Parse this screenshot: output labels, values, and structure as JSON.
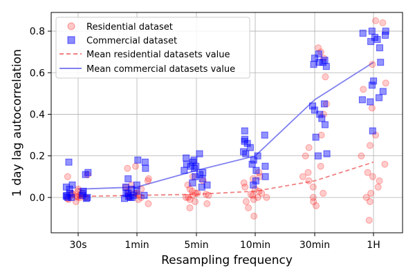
{
  "chart_data": {
    "type": "scatter",
    "xlabel": "Resampling frequency",
    "ylabel": "1 day lag autocorrelation",
    "categories": [
      "30s",
      "1min",
      "5min",
      "10min",
      "30min",
      "1H"
    ],
    "yticks": [
      0.0,
      0.2,
      0.4,
      0.6,
      0.8
    ],
    "ytick_labels": [
      "0.0",
      "0.2",
      "0.4",
      "0.6",
      "0.8"
    ],
    "ylim": [
      -0.17,
      0.89
    ],
    "grid": true,
    "legend_position": "top-left",
    "legend": [
      "Residential dataset",
      "Commercial dataset",
      "Mean residential datasets value",
      "Mean commercial datasets value"
    ],
    "colors": {
      "residential": "#ff0000",
      "commercial": "#0000ff",
      "residential_mean": "#f08080",
      "commercial_mean": "#8080f0"
    },
    "mean_residential": [
      0.005,
      0.01,
      0.015,
      0.03,
      0.08,
      0.17
    ],
    "mean_commercial": [
      0.04,
      0.05,
      0.13,
      0.2,
      0.47,
      0.65
    ],
    "series": [
      {
        "name": "Residential dataset",
        "marker": "circle",
        "points": [
          [
            0,
            0.0
          ],
          [
            0,
            0.01
          ],
          [
            0,
            -0.01
          ],
          [
            0,
            0.02
          ],
          [
            0,
            0.005
          ],
          [
            0,
            0.03
          ],
          [
            0,
            0.1
          ],
          [
            0,
            0.11
          ],
          [
            0,
            0.0
          ],
          [
            0,
            -0.02
          ],
          [
            0,
            0.015
          ],
          [
            0,
            0.0
          ],
          [
            0,
            0.02
          ],
          [
            0,
            -0.005
          ],
          [
            0,
            0.04
          ],
          [
            0,
            0.01
          ],
          [
            1,
            0.0
          ],
          [
            1,
            0.01
          ],
          [
            1,
            -0.01
          ],
          [
            1,
            0.02
          ],
          [
            1,
            0.03
          ],
          [
            1,
            0.05
          ],
          [
            1,
            0.08
          ],
          [
            1,
            0.09
          ],
          [
            1,
            0.14
          ],
          [
            1,
            0.15
          ],
          [
            1,
            -0.03
          ],
          [
            1,
            0.0
          ],
          [
            1,
            0.02
          ],
          [
            1,
            0.01
          ],
          [
            1,
            0.04
          ],
          [
            1,
            0.06
          ],
          [
            2,
            0.0
          ],
          [
            2,
            0.01
          ],
          [
            2,
            -0.02
          ],
          [
            2,
            -0.05
          ],
          [
            2,
            0.02
          ],
          [
            2,
            0.03
          ],
          [
            2,
            0.06
          ],
          [
            2,
            0.08
          ],
          [
            2,
            0.1
          ],
          [
            2,
            0.01
          ],
          [
            2,
            0.0
          ],
          [
            2,
            -0.03
          ],
          [
            2,
            0.04
          ],
          [
            2,
            0.015
          ],
          [
            2,
            0.02
          ],
          [
            2,
            -0.01
          ],
          [
            3,
            0.0
          ],
          [
            3,
            0.01
          ],
          [
            3,
            0.02
          ],
          [
            3,
            0.03
          ],
          [
            3,
            -0.02
          ],
          [
            3,
            -0.05
          ],
          [
            3,
            -0.09
          ],
          [
            3,
            0.05
          ],
          [
            3,
            0.07
          ],
          [
            3,
            0.09
          ],
          [
            3,
            0.1
          ],
          [
            3,
            0.12
          ],
          [
            3,
            0.0
          ],
          [
            3,
            0.015
          ],
          [
            3,
            -0.01
          ],
          [
            3,
            0.04
          ],
          [
            4,
            0.0
          ],
          [
            4,
            0.02
          ],
          [
            4,
            -0.02
          ],
          [
            4,
            0.05
          ],
          [
            4,
            0.08
          ],
          [
            4,
            0.12
          ],
          [
            4,
            0.15
          ],
          [
            4,
            0.2
          ],
          [
            4,
            0.24
          ],
          [
            4,
            0.3
          ],
          [
            4,
            0.4
          ],
          [
            4,
            0.45
          ],
          [
            4,
            0.58
          ],
          [
            4,
            0.67
          ],
          [
            4,
            0.7
          ],
          [
            4,
            0.72
          ],
          [
            4,
            -0.04
          ],
          [
            4,
            0.1
          ],
          [
            5,
            -0.11
          ],
          [
            5,
            -0.02
          ],
          [
            5,
            0.0
          ],
          [
            5,
            0.02
          ],
          [
            5,
            0.05
          ],
          [
            5,
            0.08
          ],
          [
            5,
            0.12
          ],
          [
            5,
            0.16
          ],
          [
            5,
            0.2
          ],
          [
            5,
            0.25
          ],
          [
            5,
            0.3
          ],
          [
            5,
            0.43
          ],
          [
            5,
            0.52
          ],
          [
            5,
            0.55
          ],
          [
            5,
            0.64
          ],
          [
            5,
            0.84
          ],
          [
            5,
            0.85
          ],
          [
            5,
            0.1
          ]
        ]
      },
      {
        "name": "Commercial dataset",
        "marker": "square",
        "points": [
          [
            0,
            0.17
          ],
          [
            0,
            0.11
          ],
          [
            0,
            0.12
          ],
          [
            0,
            0.06
          ],
          [
            0,
            0.05
          ],
          [
            0,
            0.04
          ],
          [
            0,
            0.03
          ],
          [
            0,
            0.02
          ],
          [
            0,
            0.01
          ],
          [
            0,
            0.0
          ],
          [
            0,
            0.0
          ],
          [
            0,
            -0.005
          ],
          [
            0,
            0.02
          ],
          [
            0,
            0.01
          ],
          [
            0,
            0.0
          ],
          [
            0,
            0.005
          ],
          [
            1,
            0.18
          ],
          [
            1,
            0.17
          ],
          [
            1,
            0.14
          ],
          [
            1,
            0.09
          ],
          [
            1,
            0.06
          ],
          [
            1,
            0.05
          ],
          [
            1,
            0.04
          ],
          [
            1,
            0.03
          ],
          [
            1,
            0.02
          ],
          [
            1,
            0.01
          ],
          [
            1,
            0.0
          ],
          [
            1,
            0.0
          ],
          [
            1,
            0.01
          ],
          [
            1,
            0.02
          ],
          [
            1,
            0.005
          ],
          [
            1,
            -0.005
          ],
          [
            2,
            0.21
          ],
          [
            2,
            0.19
          ],
          [
            2,
            0.18
          ],
          [
            2,
            0.16
          ],
          [
            2,
            0.15
          ],
          [
            2,
            0.14
          ],
          [
            2,
            0.13
          ],
          [
            2,
            0.12
          ],
          [
            2,
            0.1
          ],
          [
            2,
            0.09
          ],
          [
            2,
            0.07
          ],
          [
            2,
            0.06
          ],
          [
            2,
            0.05
          ],
          [
            2,
            0.11
          ],
          [
            2,
            0.15
          ],
          [
            2,
            0.17
          ],
          [
            3,
            0.32
          ],
          [
            3,
            0.3
          ],
          [
            3,
            0.28
          ],
          [
            3,
            0.27
          ],
          [
            3,
            0.26
          ],
          [
            3,
            0.24
          ],
          [
            3,
            0.22
          ],
          [
            3,
            0.2
          ],
          [
            3,
            0.18
          ],
          [
            3,
            0.16
          ],
          [
            3,
            0.13
          ],
          [
            3,
            0.1
          ],
          [
            3,
            0.08
          ],
          [
            3,
            0.06
          ],
          [
            3,
            0.21
          ],
          [
            3,
            0.15
          ],
          [
            4,
            0.69
          ],
          [
            4,
            0.67
          ],
          [
            4,
            0.66
          ],
          [
            4,
            0.65
          ],
          [
            4,
            0.64
          ],
          [
            4,
            0.63
          ],
          [
            4,
            0.45
          ],
          [
            4,
            0.44
          ],
          [
            4,
            0.42
          ],
          [
            4,
            0.4
          ],
          [
            4,
            0.38
          ],
          [
            4,
            0.35
          ],
          [
            4,
            0.29
          ],
          [
            4,
            0.21
          ],
          [
            4,
            0.2
          ],
          [
            4,
            0.65
          ],
          [
            5,
            0.8
          ],
          [
            5,
            0.79
          ],
          [
            5,
            0.78
          ],
          [
            5,
            0.77
          ],
          [
            5,
            0.76
          ],
          [
            5,
            0.75
          ],
          [
            5,
            0.72
          ],
          [
            5,
            0.65
          ],
          [
            5,
            0.56
          ],
          [
            5,
            0.54
          ],
          [
            5,
            0.51
          ],
          [
            5,
            0.48
          ],
          [
            5,
            0.47
          ],
          [
            5,
            0.46
          ],
          [
            5,
            0.32
          ],
          [
            5,
            0.8
          ]
        ]
      }
    ]
  }
}
